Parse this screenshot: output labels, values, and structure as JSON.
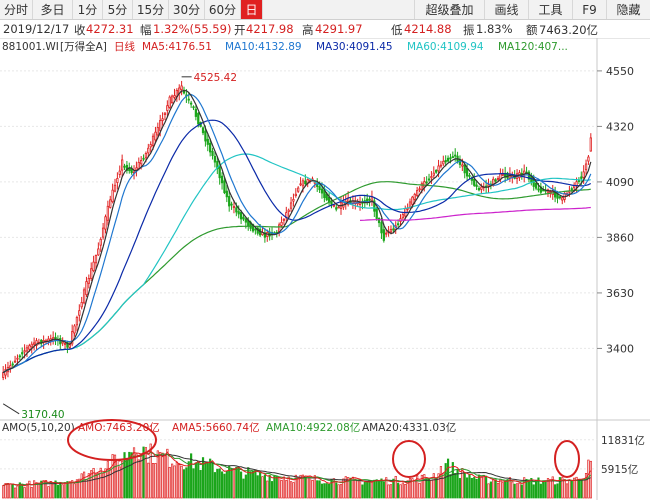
{
  "toolbar": {
    "tabs": [
      "分时",
      "多日",
      "1分",
      "5分",
      "15分",
      "30分",
      "60分",
      "日"
    ],
    "active_tab": "日",
    "buttons": [
      "超级叠加",
      "画线",
      "工具",
      "F9",
      "隐藏"
    ]
  },
  "stats": {
    "date": "2019/12/17",
    "close_label": "收",
    "close": "4272.31",
    "change_label": "幅",
    "change": "1.32%(55.59)",
    "open_label": "开",
    "open": "4217.98",
    "high_label": "高",
    "high": "4291.97",
    "low_label": "低",
    "low": "4214.88",
    "amplitude_label": "振",
    "amplitude": "1.83%",
    "amount_label": "额",
    "amount": "7463.20亿"
  },
  "legend": {
    "code": "881001.WI",
    "name": "[万得全A]",
    "period": "日线",
    "ma5": "MA5:4176.51",
    "ma10": "MA10:4132.89",
    "ma30": "MA30:4091.45",
    "ma60": "MA60:4109.94",
    "ma120": "MA120:407..."
  },
  "volume_legend": {
    "title": "AMO(5,10,20)",
    "amo": "AMO:7463.20亿",
    "ama5": "AMA5:5660.74亿",
    "ama10": "AMA10:4922.08亿",
    "ama20": "AMA20:4331.03亿"
  },
  "colors": {
    "up": "#e02020",
    "down": "#1aa51a",
    "ma5": "#333333",
    "ma10": "#1f77d0",
    "ma30": "#0b2aa8",
    "ma60": "#21c4c4",
    "ma120": "#2e9a2e",
    "ma250": "#cc22cc",
    "highlight": "#d42020"
  },
  "chart_data": {
    "type": "candlestick",
    "price_axis_ticks": [
      4550,
      4320,
      4090,
      3860,
      3630,
      3400
    ],
    "price_range": [
      3120,
      4620
    ],
    "volume_axis_ticks": [
      "11831亿",
      "5915亿"
    ],
    "volume_range": [
      0,
      12600
    ],
    "annotations": {
      "high": "4525.42",
      "low": "3170.40"
    },
    "anchors": [
      [
        0,
        3290
      ],
      [
        8,
        3380
      ],
      [
        13,
        3420
      ],
      [
        22,
        3440
      ],
      [
        28,
        3410
      ],
      [
        35,
        3650
      ],
      [
        40,
        3800
      ],
      [
        45,
        4000
      ],
      [
        50,
        4160
      ],
      [
        55,
        4130
      ],
      [
        60,
        4200
      ],
      [
        65,
        4300
      ],
      [
        70,
        4420
      ],
      [
        75,
        4480
      ],
      [
        80,
        4400
      ],
      [
        85,
        4280
      ],
      [
        90,
        4160
      ],
      [
        95,
        4010
      ],
      [
        100,
        3950
      ],
      [
        105,
        3900
      ],
      [
        110,
        3870
      ],
      [
        115,
        3880
      ],
      [
        120,
        3970
      ],
      [
        125,
        4080
      ],
      [
        130,
        4100
      ],
      [
        135,
        4040
      ],
      [
        140,
        3980
      ],
      [
        145,
        4010
      ],
      [
        150,
        4000
      ],
      [
        155,
        4020
      ],
      [
        160,
        3870
      ],
      [
        165,
        3900
      ],
      [
        170,
        3980
      ],
      [
        175,
        4060
      ],
      [
        180,
        4110
      ],
      [
        185,
        4170
      ],
      [
        190,
        4200
      ],
      [
        195,
        4130
      ],
      [
        200,
        4060
      ],
      [
        205,
        4080
      ],
      [
        210,
        4120
      ],
      [
        215,
        4110
      ],
      [
        220,
        4130
      ],
      [
        225,
        4060
      ],
      [
        230,
        4050
      ],
      [
        235,
        4020
      ],
      [
        240,
        4070
      ],
      [
        244,
        4120
      ],
      [
        247,
        4217
      ]
    ],
    "last_candle": {
      "open": 4217.98,
      "high": 4291.97,
      "low": 4214.88,
      "close": 4272.31
    },
    "volume_anchors": [
      [
        0,
        2600
      ],
      [
        20,
        3000
      ],
      [
        32,
        4000
      ],
      [
        40,
        6200
      ],
      [
        50,
        7800
      ],
      [
        55,
        10800
      ],
      [
        62,
        9000
      ],
      [
        70,
        8000
      ],
      [
        80,
        7200
      ],
      [
        90,
        6200
      ],
      [
        100,
        5200
      ],
      [
        110,
        4600
      ],
      [
        130,
        3800
      ],
      [
        150,
        3400
      ],
      [
        170,
        3600
      ],
      [
        180,
        4200
      ],
      [
        186,
        6800
      ],
      [
        192,
        5200
      ],
      [
        200,
        3800
      ],
      [
        220,
        3400
      ],
      [
        240,
        3600
      ],
      [
        245,
        5200
      ],
      [
        247,
        7463
      ]
    ]
  }
}
